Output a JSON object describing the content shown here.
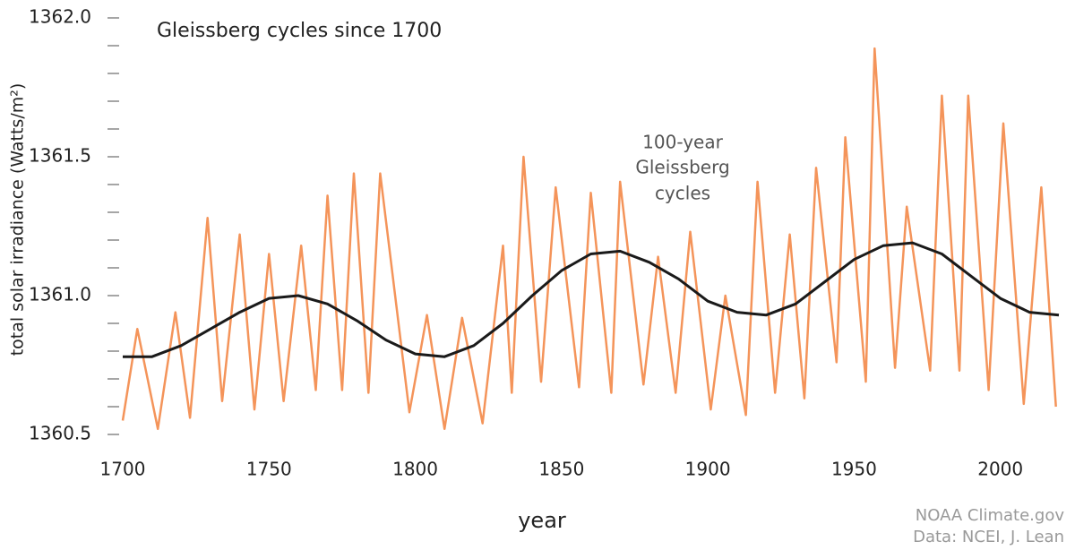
{
  "chart_data": {
    "type": "line",
    "title": "Gleissberg cycles since 1700",
    "xlabel": "year",
    "ylabel": "total solar irradiance (Watts/m²)",
    "annotation": [
      "100-year",
      "Gleissberg",
      "cycles"
    ],
    "source": [
      "NOAA Climate.gov",
      "Data: NCEI, J. Lean"
    ],
    "xlim": [
      1700,
      2020
    ],
    "xticks": [
      1700,
      1750,
      1800,
      1850,
      1900,
      1950,
      2000
    ],
    "ylim": [
      1360.5,
      1362.0
    ],
    "yticks": [
      {
        "value": 1360.5,
        "label": "1360.5"
      },
      {
        "value": 1361.0,
        "label": "1361.0"
      },
      {
        "value": 1361.5,
        "label": "1361.5"
      },
      {
        "value": 1362.0,
        "label": "1362.0"
      }
    ],
    "yticks_minor": [
      1360.6,
      1360.7,
      1360.8,
      1360.9,
      1361.1,
      1361.2,
      1361.3,
      1361.4,
      1361.6,
      1361.7,
      1361.8,
      1361.9
    ],
    "grid": false,
    "series": [
      {
        "color": "#f4945a",
        "x": [
          1700,
          1705,
          1712,
          1718,
          1723,
          1729,
          1734,
          1740,
          1745,
          1750,
          1755,
          1761,
          1766,
          1770,
          1775,
          1779,
          1784,
          1788,
          1798,
          1804,
          1810,
          1816,
          1823,
          1830,
          1833,
          1837,
          1843,
          1848,
          1856,
          1860,
          1867,
          1870,
          1878,
          1883,
          1889,
          1894,
          1901,
          1906,
          1913,
          1917,
          1923,
          1928,
          1933,
          1937,
          1944,
          1947,
          1954,
          1957,
          1964,
          1968,
          1976,
          1980,
          1986,
          1989,
          1996,
          2001,
          2008,
          2014,
          2019
        ],
        "values": [
          1360.55,
          1360.88,
          1360.52,
          1360.94,
          1360.56,
          1361.28,
          1360.62,
          1361.22,
          1360.59,
          1361.15,
          1360.62,
          1361.18,
          1360.66,
          1361.36,
          1360.66,
          1361.44,
          1360.65,
          1361.44,
          1360.58,
          1360.93,
          1360.52,
          1360.92,
          1360.54,
          1361.18,
          1360.65,
          1361.5,
          1360.69,
          1361.39,
          1360.67,
          1361.37,
          1360.65,
          1361.41,
          1360.68,
          1361.14,
          1360.65,
          1361.23,
          1360.59,
          1361.0,
          1360.57,
          1361.41,
          1360.65,
          1361.22,
          1360.63,
          1361.46,
          1360.76,
          1361.57,
          1360.69,
          1361.89,
          1360.74,
          1361.32,
          1360.73,
          1361.72,
          1360.73,
          1361.72,
          1360.66,
          1361.62,
          1360.61,
          1361.39,
          1360.6
        ]
      },
      {
        "color": "#1a1a1a",
        "x": [
          1700,
          1710,
          1720,
          1730,
          1740,
          1750,
          1760,
          1770,
          1780,
          1790,
          1800,
          1810,
          1820,
          1830,
          1840,
          1850,
          1860,
          1870,
          1880,
          1890,
          1900,
          1910,
          1920,
          1930,
          1940,
          1950,
          1960,
          1970,
          1980,
          1990,
          2000,
          2010,
          2020
        ],
        "values": [
          1360.78,
          1360.78,
          1360.82,
          1360.88,
          1360.94,
          1360.99,
          1361.0,
          1360.97,
          1360.91,
          1360.84,
          1360.79,
          1360.78,
          1360.82,
          1360.9,
          1361.0,
          1361.09,
          1361.15,
          1361.16,
          1361.12,
          1361.06,
          1360.98,
          1360.94,
          1360.93,
          1360.97,
          1361.05,
          1361.13,
          1361.18,
          1361.19,
          1361.15,
          1361.07,
          1360.99,
          1360.94,
          1360.93
        ]
      }
    ]
  }
}
